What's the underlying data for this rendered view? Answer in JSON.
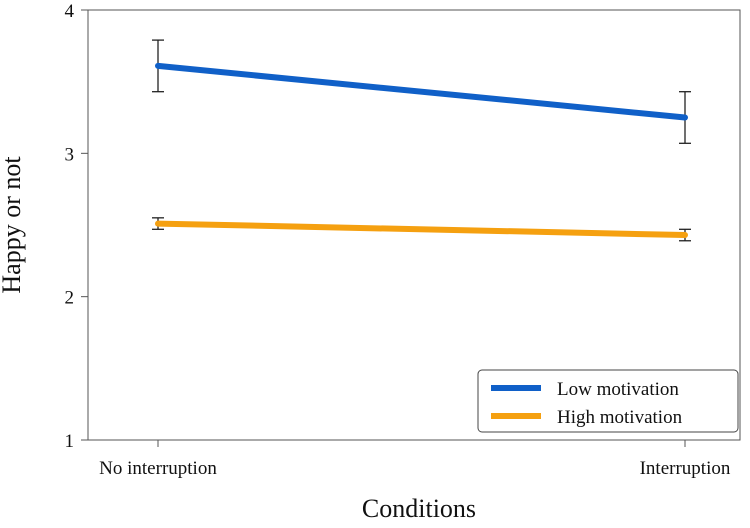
{
  "chart_data": {
    "type": "line",
    "title": "",
    "xlabel": "Conditions",
    "ylabel": "Happy or not",
    "categories": [
      "No interruption",
      "Interruption"
    ],
    "ylim": [
      1,
      4
    ],
    "yticks": [
      "1",
      "2",
      "3",
      "4"
    ],
    "series": [
      {
        "name": "Low motivation",
        "color": "#1060c8",
        "values": [
          3.61,
          3.25
        ],
        "err_low": [
          3.43,
          3.07
        ],
        "err_high": [
          3.79,
          3.43
        ]
      },
      {
        "name": "High motivation",
        "color": "#f5a010",
        "values": [
          2.51,
          2.43
        ],
        "err_low": [
          2.47,
          2.39
        ],
        "err_high": [
          2.55,
          2.47
        ]
      }
    ],
    "legend_position": "bottom-right",
    "grid": false
  }
}
